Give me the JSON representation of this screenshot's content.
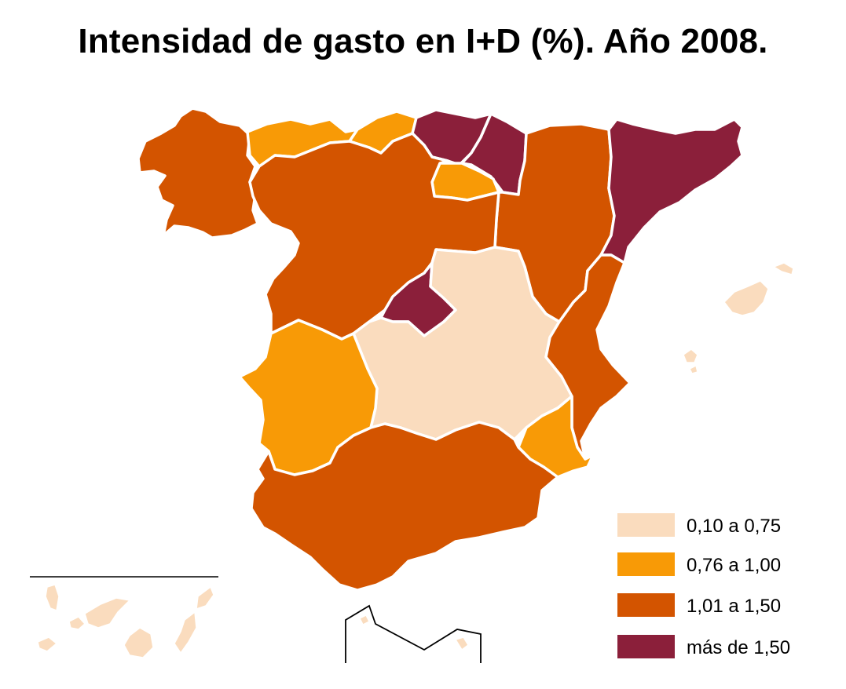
{
  "title": "Intensidad de gasto en I+D (%). Año 2008.",
  "legend": {
    "items": [
      {
        "label": "0,10 a 0,75",
        "color": "#fadcbe"
      },
      {
        "label": "0,76 a 1,00",
        "color": "#f89a06"
      },
      {
        "label": "1,01 a 1,50",
        "color": "#d35400"
      },
      {
        "label": "más de 1,50",
        "color": "#8b1f3a"
      }
    ]
  },
  "regions": [
    {
      "name": "Galicia",
      "class": "1,01 a 1,50"
    },
    {
      "name": "Asturias",
      "class": "0,76 a 1,00"
    },
    {
      "name": "Cantabria",
      "class": "0,76 a 1,00"
    },
    {
      "name": "País Vasco",
      "class": "más de 1,50"
    },
    {
      "name": "Navarra",
      "class": "más de 1,50"
    },
    {
      "name": "La Rioja",
      "class": "0,76 a 1,00"
    },
    {
      "name": "Aragón",
      "class": "1,01 a 1,50"
    },
    {
      "name": "Cataluña",
      "class": "más de 1,50"
    },
    {
      "name": "Castilla y León",
      "class": "1,01 a 1,50"
    },
    {
      "name": "Madrid",
      "class": "más de 1,50"
    },
    {
      "name": "Castilla-La Mancha",
      "class": "0,10 a 0,75"
    },
    {
      "name": "Extremadura",
      "class": "0,76 a 1,00"
    },
    {
      "name": "Comunidad Valenciana",
      "class": "1,01 a 1,50"
    },
    {
      "name": "Murcia",
      "class": "0,76 a 1,00"
    },
    {
      "name": "Andalucía",
      "class": "1,01 a 1,50"
    },
    {
      "name": "Baleares",
      "class": "0,10 a 0,75"
    },
    {
      "name": "Canarias",
      "class": "0,10 a 0,75"
    },
    {
      "name": "Ceuta y Melilla",
      "class": "0,10 a 0,75"
    }
  ]
}
